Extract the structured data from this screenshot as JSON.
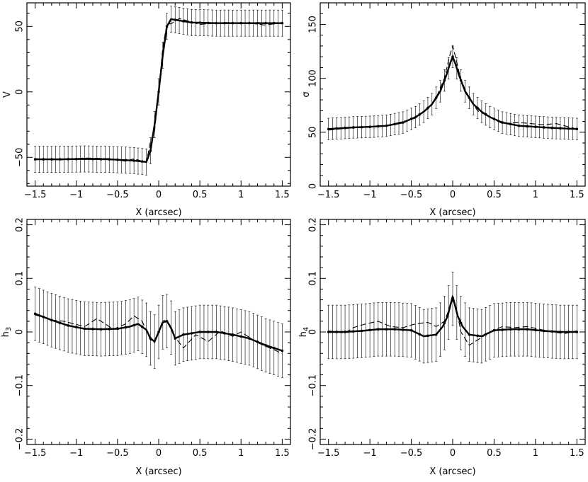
{
  "chart_data": [
    {
      "id": "v",
      "type": "line",
      "xlabel": "X (arcsec)",
      "ylabel": "V",
      "ylabel_sub": "",
      "xlim": [
        -1.6,
        1.6
      ],
      "ylim": [
        -72,
        68
      ],
      "xticks": [
        -1.5,
        -1,
        -0.5,
        0,
        0.5,
        1,
        1.5
      ],
      "xtick_labels": [
        "−1.5",
        "−1",
        "−0.5",
        "0",
        "0.5",
        "1",
        "1.5"
      ],
      "yticks": [
        -50,
        0,
        50
      ],
      "ytick_labels": [
        "−50",
        "0",
        "50"
      ],
      "error_halfwidth": 10,
      "model": {
        "x": [
          -1.5,
          -1.2,
          -0.9,
          -0.6,
          -0.3,
          -0.15,
          -0.1,
          -0.05,
          0,
          0.05,
          0.1,
          0.15,
          0.2,
          0.4,
          0.7,
          1.0,
          1.3,
          1.5
        ],
        "y": [
          -51.5,
          -51.5,
          -51.2,
          -51.5,
          -52.5,
          -53.5,
          -45,
          -25,
          0,
          28,
          50,
          55.5,
          55,
          53,
          52.5,
          52.5,
          52.5,
          52.5
        ]
      },
      "dashed": {
        "x": [
          -1.5,
          -1.2,
          -0.9,
          -0.6,
          -0.4,
          -0.3,
          -0.15,
          -0.1,
          -0.05,
          0,
          0.05,
          0.1,
          0.15,
          0.25,
          0.5,
          0.8,
          1.1,
          1.3,
          1.5
        ],
        "y": [
          -51,
          -52,
          -50.5,
          -51,
          -53,
          -51,
          -54,
          -38,
          -30,
          0,
          34,
          52,
          52,
          56,
          51.5,
          53,
          52.5,
          51,
          53
        ]
      }
    },
    {
      "id": "sigma",
      "type": "line",
      "xlabel": "X (arcsec)",
      "ylabel": "σ",
      "ylabel_sub": "",
      "xlim": [
        -1.6,
        1.6
      ],
      "ylim": [
        0,
        170
      ],
      "xticks": [
        -1.5,
        -1,
        -0.5,
        0,
        0.5,
        1,
        1.5
      ],
      "xtick_labels": [
        "−1.5",
        "−1",
        "−0.5",
        "0",
        "0.5",
        "1",
        "1.5"
      ],
      "yticks": [
        0,
        50,
        100,
        150
      ],
      "ytick_labels": [
        "0",
        "50",
        "100",
        "150"
      ],
      "error_halfwidth": 10,
      "model": {
        "x": [
          -1.5,
          -1.2,
          -1.0,
          -0.8,
          -0.6,
          -0.45,
          -0.35,
          -0.25,
          -0.15,
          -0.08,
          -0.03,
          0,
          0.03,
          0.08,
          0.15,
          0.25,
          0.35,
          0.45,
          0.6,
          0.8,
          1.0,
          1.2,
          1.5
        ],
        "y": [
          53,
          54.5,
          55,
          56,
          59,
          64,
          69,
          76,
          88,
          102,
          114,
          120,
          114,
          102,
          88,
          76,
          69,
          64,
          59,
          56,
          55,
          54,
          53
        ]
      },
      "dashed": {
        "x": [
          -1.5,
          -1.1,
          -0.8,
          -0.6,
          -0.45,
          -0.3,
          -0.2,
          -0.1,
          -0.04,
          0,
          0.04,
          0.1,
          0.2,
          0.3,
          0.45,
          0.6,
          0.8,
          1.1,
          1.25,
          1.5
        ],
        "y": [
          52,
          55,
          56,
          60,
          63,
          72,
          82,
          100,
          120,
          130,
          118,
          98,
          82,
          70,
          64,
          58,
          59,
          57,
          58,
          53
        ]
      }
    },
    {
      "id": "h3",
      "type": "line",
      "xlabel": "X (arcsec)",
      "ylabel": "h",
      "ylabel_sub": "3",
      "xlim": [
        -1.6,
        1.6
      ],
      "ylim": [
        -0.21,
        0.21
      ],
      "xticks": [
        -1.5,
        -1,
        -0.5,
        0,
        0.5,
        1,
        1.5
      ],
      "xtick_labels": [
        "−1.5",
        "−1",
        "−0.5",
        "0",
        "0.5",
        "1",
        "1.5"
      ],
      "yticks": [
        -0.2,
        -0.1,
        0,
        0.1,
        0.2
      ],
      "ytick_labels": [
        "−0.2",
        "−0.1",
        "0",
        "0.1",
        "0.2"
      ],
      "error_halfwidth": 0.05,
      "model": {
        "x": [
          -1.5,
          -1.3,
          -1.1,
          -0.9,
          -0.7,
          -0.5,
          -0.35,
          -0.25,
          -0.15,
          -0.1,
          -0.05,
          0,
          0.05,
          0.1,
          0.15,
          0.2,
          0.3,
          0.5,
          0.7,
          0.9,
          1.1,
          1.3,
          1.5
        ],
        "y": [
          0.034,
          0.022,
          0.012,
          0.006,
          0.005,
          0.006,
          0.01,
          0.015,
          0.004,
          -0.012,
          -0.018,
          0.0,
          0.018,
          0.02,
          0.008,
          -0.012,
          -0.005,
          0.0,
          0.0,
          -0.005,
          -0.012,
          -0.025,
          -0.035
        ]
      },
      "dashed": {
        "x": [
          -1.5,
          -1.3,
          -1.15,
          -0.9,
          -0.75,
          -0.55,
          -0.4,
          -0.3,
          -0.2,
          -0.1,
          -0.05,
          0,
          0.05,
          0.1,
          0.2,
          0.3,
          0.45,
          0.6,
          0.75,
          0.9,
          1.0,
          1.2,
          1.35,
          1.5
        ],
        "y": [
          0.032,
          0.022,
          0.02,
          0.01,
          0.025,
          0.005,
          0.015,
          0.03,
          0.02,
          -0.015,
          -0.02,
          0.0,
          0.022,
          0.02,
          -0.01,
          -0.03,
          -0.005,
          -0.018,
          0.002,
          -0.008,
          0.0,
          -0.02,
          -0.03,
          -0.04
        ]
      }
    },
    {
      "id": "h4",
      "type": "line",
      "xlabel": "X (arcsec)",
      "ylabel": "h",
      "ylabel_sub": "4",
      "xlim": [
        -1.6,
        1.6
      ],
      "ylim": [
        -0.21,
        0.21
      ],
      "xticks": [
        -1.5,
        -1,
        -0.5,
        0,
        0.5,
        1,
        1.5
      ],
      "xtick_labels": [
        "−1.5",
        "−1",
        "−0.5",
        "0",
        "0.5",
        "1",
        "1.5"
      ],
      "yticks": [
        -0.2,
        -0.1,
        0,
        0.1,
        0.2
      ],
      "ytick_labels": [
        "−0.2",
        "−0.1",
        "0",
        "0.1",
        "0.2"
      ],
      "error_halfwidth": 0.05,
      "model": {
        "x": [
          -1.5,
          -1.3,
          -1.1,
          -0.9,
          -0.7,
          -0.5,
          -0.35,
          -0.2,
          -0.12,
          -0.06,
          -0.02,
          0,
          0.02,
          0.06,
          0.12,
          0.2,
          0.35,
          0.5,
          0.7,
          0.9,
          1.1,
          1.3,
          1.5
        ],
        "y": [
          0.0,
          0.0,
          0.002,
          0.005,
          0.005,
          0.003,
          -0.008,
          -0.005,
          0.01,
          0.03,
          0.055,
          0.062,
          0.055,
          0.03,
          0.01,
          -0.005,
          -0.008,
          0.003,
          0.005,
          0.005,
          0.002,
          0.0,
          0.0
        ]
      },
      "dashed": {
        "x": [
          -1.5,
          -1.3,
          -1.2,
          -1.05,
          -0.9,
          -0.75,
          -0.6,
          -0.45,
          -0.3,
          -0.2,
          -0.1,
          -0.05,
          0,
          0.05,
          0.1,
          0.2,
          0.3,
          0.45,
          0.6,
          0.75,
          0.9,
          1.05,
          1.2,
          1.35,
          1.5
        ],
        "y": [
          0.002,
          -0.002,
          0.008,
          0.015,
          0.02,
          0.01,
          0.008,
          0.015,
          0.018,
          0.01,
          0.02,
          0.04,
          0.07,
          0.04,
          0.0,
          -0.025,
          -0.015,
          0.0,
          0.01,
          0.008,
          0.01,
          0.005,
          0.0,
          -0.003,
          0.002
        ]
      }
    }
  ]
}
